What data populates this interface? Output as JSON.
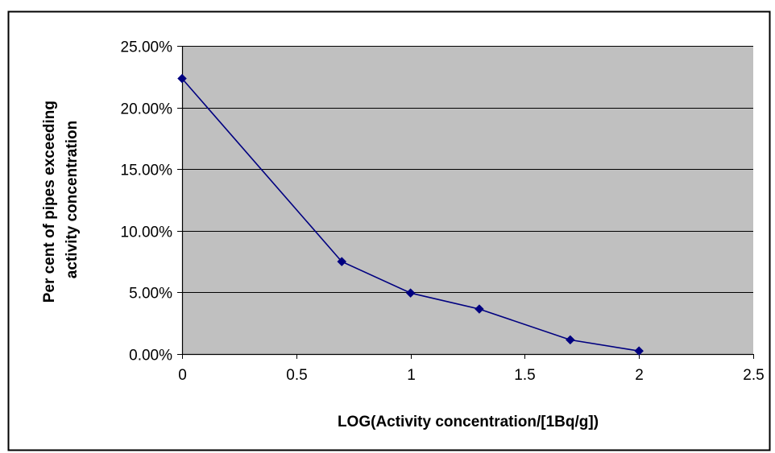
{
  "chart_data": {
    "type": "line",
    "title": "",
    "xlabel": "LOG(Activity concentration/[1Bq/g])",
    "ylabel_lines": [
      "Per cent of pipes exceeding",
      "activity concentration"
    ],
    "xlim": [
      0,
      2.5
    ],
    "ylim": [
      0,
      0.25
    ],
    "x_ticks": [
      0,
      0.5,
      1,
      1.5,
      2,
      2.5
    ],
    "x_tick_labels": [
      "0",
      "0.5",
      "1",
      "1.5",
      "2",
      "2.5"
    ],
    "y_ticks": [
      0,
      0.05,
      0.1,
      0.15,
      0.2,
      0.25
    ],
    "y_tick_labels": [
      "0.00%",
      "5.00%",
      "10.00%",
      "15.00%",
      "20.00%",
      "25.00%"
    ],
    "grid": "horizontal",
    "legend": "none",
    "series": [
      {
        "x": [
          0,
          0.699,
          1,
          1.301,
          1.699,
          2
        ],
        "values": [
          0.2235,
          0.075,
          0.0495,
          0.0365,
          0.0115,
          0.0025
        ]
      }
    ],
    "colors": {
      "plot_background": "#c0c0c0",
      "line": "#000080",
      "marker": "#000080",
      "gridline": "#000000",
      "frame": "#000000"
    }
  }
}
